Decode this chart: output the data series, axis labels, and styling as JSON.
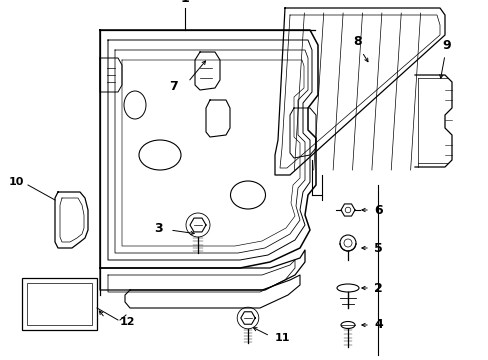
{
  "bg_color": "#ffffff",
  "line_color": "#000000",
  "fig_width": 4.89,
  "fig_height": 3.6,
  "dpi": 100,
  "font_size_label": 9,
  "font_size_small": 8
}
